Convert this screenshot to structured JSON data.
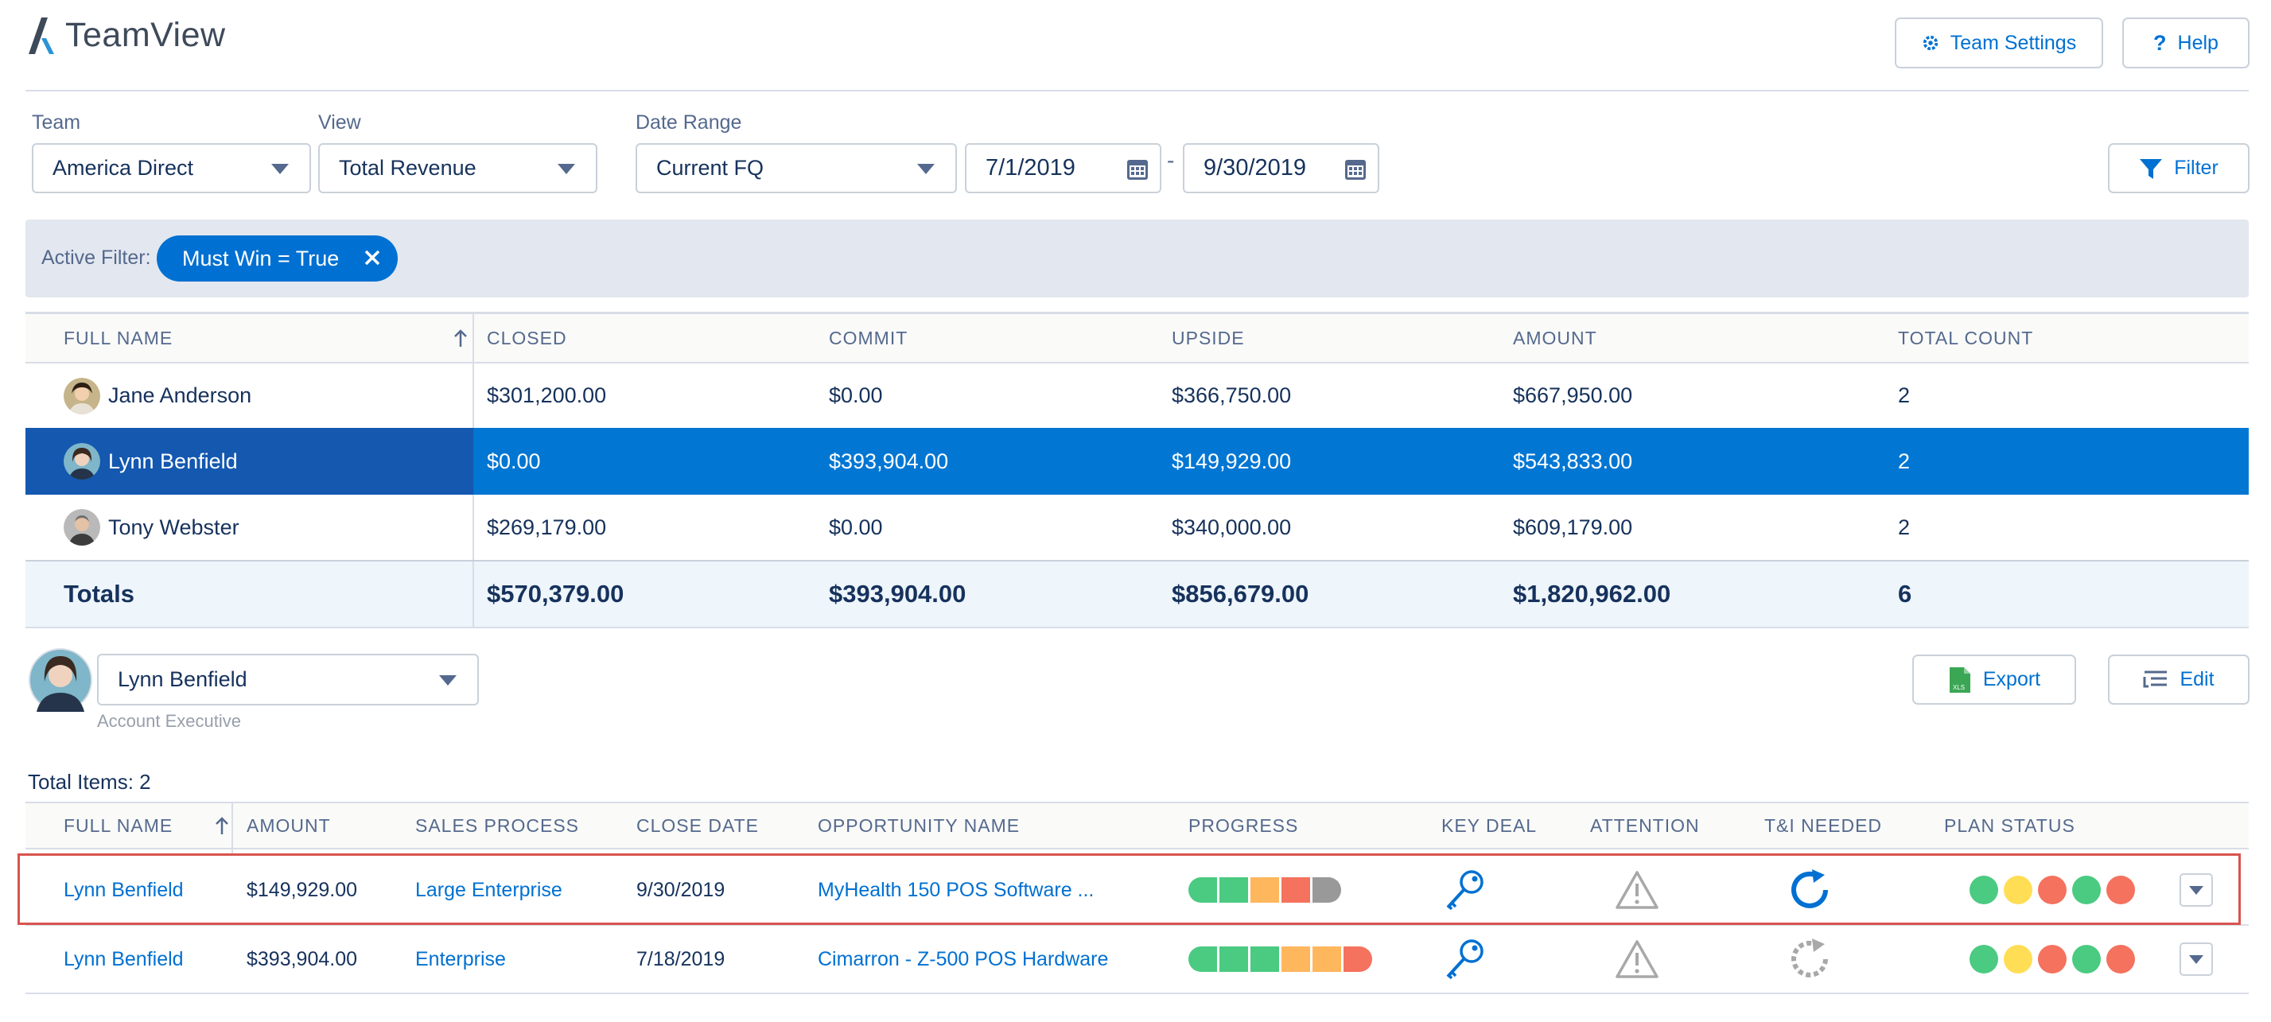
{
  "app": {
    "title": "TeamView"
  },
  "header": {
    "team_settings": "Team Settings",
    "help": "Help"
  },
  "filters": {
    "team_label": "Team",
    "team_value": "America Direct",
    "view_label": "View",
    "view_value": "Total Revenue",
    "date_range_label": "Date Range",
    "date_range_value": "Current FQ",
    "date_start": "7/1/2019",
    "date_separator": "-",
    "date_end": "9/30/2019",
    "filter_button": "Filter"
  },
  "active_filter": {
    "label": "Active Filter:",
    "pill": "Must Win = True"
  },
  "summary_table": {
    "headers": [
      "FULL NAME",
      "CLOSED",
      "COMMIT",
      "UPSIDE",
      "AMOUNT",
      "TOTAL COUNT"
    ],
    "rows": [
      {
        "name": "Jane Anderson",
        "closed": "$301,200.00",
        "commit": "$0.00",
        "upside": "$366,750.00",
        "amount": "$667,950.00",
        "count": "2"
      },
      {
        "name": "Lynn Benfield",
        "closed": "$0.00",
        "commit": "$393,904.00",
        "upside": "$149,929.00",
        "amount": "$543,833.00",
        "count": "2"
      },
      {
        "name": "Tony Webster",
        "closed": "$269,179.00",
        "commit": "$0.00",
        "upside": "$340,000.00",
        "amount": "$609,179.00",
        "count": "2"
      }
    ],
    "totals": {
      "label": "Totals",
      "closed": "$570,379.00",
      "commit": "$393,904.00",
      "upside": "$856,679.00",
      "amount": "$1,820,962.00",
      "count": "6"
    }
  },
  "person": {
    "name": "Lynn Benfield",
    "role": "Account Executive",
    "export": "Export",
    "edit": "Edit"
  },
  "detail_table": {
    "total_items": "Total Items: 2",
    "headers": [
      "FULL NAME",
      "AMOUNT",
      "SALES PROCESS",
      "CLOSE DATE",
      "OPPORTUNITY NAME",
      "PROGRESS",
      "KEY DEAL",
      "ATTENTION",
      "T&I NEEDED",
      "PLAN STATUS"
    ],
    "rows": [
      {
        "name": "Lynn Benfield",
        "amount": "$149,929.00",
        "sales_process": "Large Enterprise",
        "close_date": "9/30/2019",
        "opportunity": "MyHealth 150 POS Software ...",
        "progress": [
          "#4bca81",
          "#4bca81",
          "#ffb75d",
          "#f4725e",
          "#999999"
        ],
        "plan_status": [
          "#4bca81",
          "#ffde56",
          "#f4725e",
          "#4bca81",
          "#f4725e"
        ],
        "tni": "active"
      },
      {
        "name": "Lynn Benfield",
        "amount": "$393,904.00",
        "sales_process": "Enterprise",
        "close_date": "7/18/2019",
        "opportunity": "Cimarron - Z-500 POS Hardware",
        "progress": [
          "#4bca81",
          "#4bca81",
          "#4bca81",
          "#ffb75d",
          "#ffb75d",
          "#f4725e"
        ],
        "plan_status": [
          "#4bca81",
          "#ffde56",
          "#f4725e",
          "#4bca81",
          "#f4725e"
        ],
        "tni": "inactive"
      }
    ]
  },
  "colors": {
    "accent": "#0070d2",
    "selected_row": "#0176d3",
    "selected_name_cell": "#1458b0",
    "highlight_border": "#d9534f"
  }
}
